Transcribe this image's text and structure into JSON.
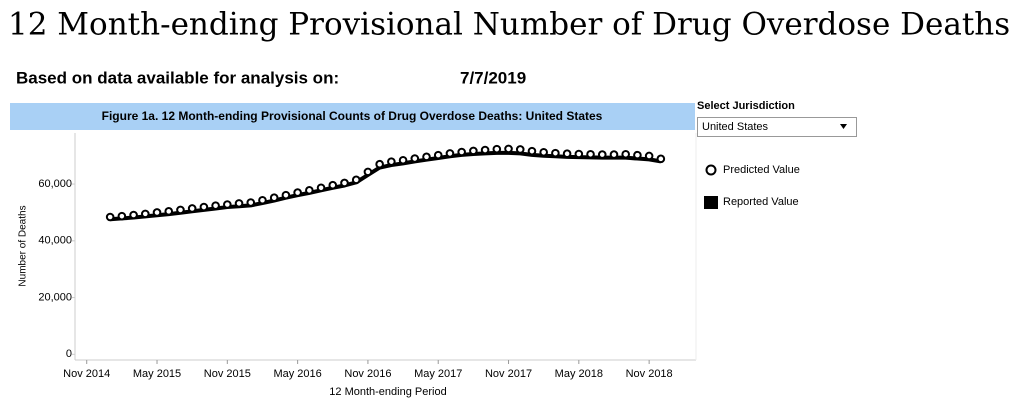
{
  "header": {
    "title": "12 Month-ending Provisional Number of Drug Overdose Deaths"
  },
  "availability": {
    "label": "Based on data available for analysis on:",
    "date": "7/7/2019"
  },
  "filter": {
    "label": "Select Jurisdiction",
    "value": "United States"
  },
  "chart_data": {
    "type": "line",
    "title": "Figure 1a. 12 Month-ending Provisional Counts of Drug Overdose Deaths: United States",
    "x_label": "12 Month-ending Period",
    "y_label": "Number of Deaths",
    "x": [
      "2015-01",
      "2015-02",
      "2015-03",
      "2015-04",
      "2015-05",
      "2015-06",
      "2015-07",
      "2015-08",
      "2015-09",
      "2015-10",
      "2015-11",
      "2015-12",
      "2016-01",
      "2016-02",
      "2016-03",
      "2016-04",
      "2016-05",
      "2016-06",
      "2016-07",
      "2016-08",
      "2016-09",
      "2016-10",
      "2016-11",
      "2016-12",
      "2017-01",
      "2017-02",
      "2017-03",
      "2017-04",
      "2017-05",
      "2017-06",
      "2017-07",
      "2017-08",
      "2017-09",
      "2017-10",
      "2017-11",
      "2017-12",
      "2018-01",
      "2018-02",
      "2018-03",
      "2018-04",
      "2018-05",
      "2018-06",
      "2018-07",
      "2018-08",
      "2018-09",
      "2018-10",
      "2018-11",
      "2018-12"
    ],
    "series": [
      {
        "name": "Predicted Value",
        "color": "#000000",
        "marker": "circle",
        "values": [
          48400,
          48700,
          49100,
          49500,
          50000,
          50400,
          50900,
          51400,
          51900,
          52400,
          52800,
          53200,
          53500,
          54300,
          55200,
          56100,
          57000,
          57800,
          58700,
          59600,
          60400,
          61500,
          64300,
          67000,
          67900,
          68400,
          69000,
          69600,
          70200,
          70800,
          71300,
          71700,
          72000,
          72300,
          72400,
          72200,
          71600,
          71200,
          70900,
          70700,
          70600,
          70500,
          70400,
          70400,
          70500,
          70200,
          69900,
          68900
        ]
      },
      {
        "name": "Reported Value",
        "color": "#000000",
        "marker": "line",
        "values": [
          47600,
          47900,
          48200,
          48600,
          49000,
          49400,
          49900,
          50400,
          50900,
          51400,
          51900,
          52200,
          52500,
          53300,
          54200,
          55200,
          56100,
          56900,
          57800,
          58700,
          59500,
          60600,
          63200,
          65800,
          66700,
          67300,
          68000,
          68600,
          69200,
          69800,
          70300,
          70600,
          70800,
          71000,
          71000,
          70800,
          70300,
          70000,
          69800,
          69600,
          69500,
          69400,
          69300,
          69300,
          69300,
          69000,
          68700,
          68000
        ]
      }
    ],
    "xlim": [
      "2014-10",
      "2019-03"
    ],
    "xticks": [
      {
        "value": "2014-11",
        "label": "Nov 2014"
      },
      {
        "value": "2015-05",
        "label": "May 2015"
      },
      {
        "value": "2015-11",
        "label": "Nov 2015"
      },
      {
        "value": "2016-05",
        "label": "May 2016"
      },
      {
        "value": "2016-11",
        "label": "Nov 2016"
      },
      {
        "value": "2017-05",
        "label": "May 2017"
      },
      {
        "value": "2017-11",
        "label": "Nov 2017"
      },
      {
        "value": "2018-05",
        "label": "May 2018"
      },
      {
        "value": "2018-11",
        "label": "Nov 2018"
      }
    ],
    "ylim": [
      -2000,
      78000
    ],
    "yticks": [
      0,
      {
        "value": 20000,
        "label": "20,000"
      },
      {
        "value": 40000,
        "label": "40,000"
      },
      {
        "value": 60000,
        "label": "60,000"
      }
    ],
    "grid": false
  }
}
